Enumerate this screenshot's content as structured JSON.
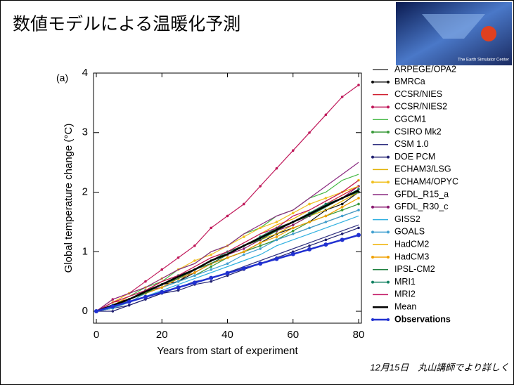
{
  "slide_title": "数値モデルによる温暖化予測",
  "photo_caption": "The Earth Simulator Center",
  "footnote": "12月15日　丸山講師でより詳しく",
  "chart_data": {
    "type": "line",
    "panel_label": "(a)",
    "x_label": "Years from start of experiment",
    "y_label": "Global temperature change (°C)",
    "xlim": [
      0,
      80
    ],
    "ylim": [
      -0.2,
      4
    ],
    "xticks": [
      0,
      20,
      40,
      60,
      80
    ],
    "yticks": [
      0,
      1,
      2,
      3,
      4
    ],
    "grid": false,
    "legend_position": "right",
    "x": [
      0,
      5,
      10,
      15,
      20,
      25,
      30,
      35,
      40,
      45,
      50,
      55,
      60,
      65,
      70,
      75,
      80
    ],
    "series": [
      {
        "name": "ARPEGE/OPA2",
        "color": "#444444",
        "markers": false,
        "values": [
          0,
          0.1,
          0.2,
          0.3,
          0.4,
          0.5,
          0.7,
          0.8,
          0.9,
          1.0,
          1.1,
          1.2,
          1.3,
          1.4,
          1.5,
          1.6,
          1.7
        ]
      },
      {
        "name": "BMRCa",
        "color": "#111111",
        "markers": true,
        "values": [
          0,
          0.1,
          0.2,
          0.3,
          0.45,
          0.5,
          0.65,
          0.8,
          0.9,
          1.0,
          1.15,
          1.3,
          1.4,
          1.5,
          1.7,
          1.8,
          2.0
        ]
      },
      {
        "name": "CCSR/NIES",
        "color": "#d02030",
        "markers": false,
        "values": [
          0,
          0.15,
          0.2,
          0.35,
          0.5,
          0.6,
          0.7,
          0.85,
          1.0,
          1.1,
          1.25,
          1.4,
          1.5,
          1.65,
          1.8,
          1.95,
          2.1
        ]
      },
      {
        "name": "CCSR/NIES2",
        "color": "#c0185a",
        "markers": true,
        "values": [
          0,
          0.2,
          0.3,
          0.5,
          0.7,
          0.9,
          1.1,
          1.4,
          1.6,
          1.8,
          2.1,
          2.4,
          2.7,
          3.0,
          3.3,
          3.6,
          3.8
        ]
      },
      {
        "name": "CGCM1",
        "color": "#44b844",
        "markers": false,
        "values": [
          0,
          0.1,
          0.25,
          0.4,
          0.5,
          0.7,
          0.8,
          1.0,
          1.1,
          1.3,
          1.4,
          1.6,
          1.7,
          1.9,
          2.0,
          2.2,
          2.3
        ]
      },
      {
        "name": "CSIRO Mk2",
        "color": "#3a9a3a",
        "markers": true,
        "values": [
          0,
          0.05,
          0.2,
          0.3,
          0.4,
          0.5,
          0.6,
          0.75,
          0.9,
          1.0,
          1.1,
          1.2,
          1.35,
          1.5,
          1.6,
          1.7,
          1.8
        ]
      },
      {
        "name": "CSM 1.0",
        "color": "#303080",
        "markers": false,
        "values": [
          0,
          0.05,
          0.1,
          0.2,
          0.3,
          0.4,
          0.5,
          0.55,
          0.65,
          0.75,
          0.85,
          0.95,
          1.05,
          1.15,
          1.25,
          1.35,
          1.45
        ]
      },
      {
        "name": "DOE PCM",
        "color": "#202070",
        "markers": true,
        "values": [
          0,
          0.0,
          0.1,
          0.2,
          0.3,
          0.35,
          0.45,
          0.5,
          0.6,
          0.7,
          0.8,
          0.9,
          1.0,
          1.1,
          1.2,
          1.3,
          1.4
        ]
      },
      {
        "name": "ECHAM3/LSG",
        "color": "#e0b000",
        "markers": false,
        "values": [
          0,
          0.1,
          0.2,
          0.3,
          0.45,
          0.55,
          0.7,
          0.85,
          0.95,
          1.1,
          1.2,
          1.3,
          1.45,
          1.6,
          1.7,
          1.85,
          2.0
        ]
      },
      {
        "name": "ECHAM4/OPYC",
        "color": "#f0c020",
        "markers": true,
        "values": [
          0,
          0.15,
          0.3,
          0.4,
          0.55,
          0.7,
          0.85,
          0.95,
          1.1,
          1.25,
          1.4,
          1.5,
          1.65,
          1.8,
          1.9,
          2.0,
          2.2
        ]
      },
      {
        "name": "GFDL_R15_a",
        "color": "#8a2a80",
        "markers": false,
        "values": [
          0,
          0.2,
          0.3,
          0.4,
          0.55,
          0.7,
          0.8,
          1.0,
          1.1,
          1.3,
          1.45,
          1.6,
          1.7,
          1.9,
          2.1,
          2.3,
          2.5
        ]
      },
      {
        "name": "GFDL_R30_c",
        "color": "#8a1a70",
        "markers": true,
        "values": [
          0,
          0.1,
          0.2,
          0.35,
          0.4,
          0.55,
          0.65,
          0.8,
          0.95,
          1.05,
          1.2,
          1.35,
          1.45,
          1.6,
          1.8,
          1.9,
          2.1
        ]
      },
      {
        "name": "GISS2",
        "color": "#30b0e0",
        "markers": false,
        "values": [
          0,
          0.1,
          0.15,
          0.25,
          0.35,
          0.45,
          0.55,
          0.65,
          0.75,
          0.85,
          0.95,
          1.1,
          1.2,
          1.3,
          1.4,
          1.5,
          1.6
        ]
      },
      {
        "name": "GOALS",
        "color": "#40a0d0",
        "markers": true,
        "values": [
          0,
          0.05,
          0.15,
          0.3,
          0.4,
          0.5,
          0.6,
          0.7,
          0.8,
          0.95,
          1.05,
          1.2,
          1.3,
          1.4,
          1.5,
          1.6,
          1.7
        ]
      },
      {
        "name": "HadCM2",
        "color": "#f0b000",
        "markers": false,
        "values": [
          0,
          0.1,
          0.25,
          0.35,
          0.5,
          0.6,
          0.75,
          0.9,
          1.0,
          1.15,
          1.3,
          1.45,
          1.55,
          1.7,
          1.85,
          2.0,
          2.1
        ]
      },
      {
        "name": "HadCM3",
        "color": "#f0a000",
        "markers": true,
        "values": [
          0,
          0.1,
          0.2,
          0.3,
          0.4,
          0.55,
          0.65,
          0.8,
          0.9,
          1.0,
          1.15,
          1.25,
          1.4,
          1.5,
          1.6,
          1.75,
          1.9
        ]
      },
      {
        "name": "IPSL-CM2",
        "color": "#208040",
        "markers": false,
        "values": [
          0,
          0.1,
          0.2,
          0.3,
          0.45,
          0.55,
          0.7,
          0.8,
          0.95,
          1.1,
          1.2,
          1.35,
          1.5,
          1.6,
          1.75,
          1.9,
          2.0
        ]
      },
      {
        "name": "MRI1",
        "color": "#108060",
        "markers": true,
        "values": [
          0,
          0.1,
          0.2,
          0.35,
          0.45,
          0.6,
          0.7,
          0.85,
          1.0,
          1.1,
          1.25,
          1.4,
          1.5,
          1.65,
          1.8,
          1.9,
          2.05
        ]
      },
      {
        "name": "MRI2",
        "color": "#c01060",
        "markers": false,
        "values": [
          0,
          0.15,
          0.25,
          0.35,
          0.5,
          0.6,
          0.75,
          0.9,
          1.0,
          1.15,
          1.3,
          1.4,
          1.6,
          1.7,
          1.85,
          2.0,
          2.2
        ]
      },
      {
        "name": "Mean",
        "color": "#000000",
        "markers": false,
        "bold": true,
        "values": [
          0,
          0.1,
          0.2,
          0.33,
          0.45,
          0.58,
          0.7,
          0.85,
          0.96,
          1.1,
          1.23,
          1.37,
          1.5,
          1.63,
          1.77,
          1.9,
          2.03
        ]
      },
      {
        "name": "Observations",
        "color": "#2030d0",
        "markers": true,
        "bold": true,
        "values": [
          0,
          0.08,
          0.16,
          0.24,
          0.32,
          0.4,
          0.48,
          0.56,
          0.64,
          0.72,
          0.8,
          0.88,
          0.96,
          1.04,
          1.12,
          1.2,
          1.28
        ]
      }
    ]
  }
}
